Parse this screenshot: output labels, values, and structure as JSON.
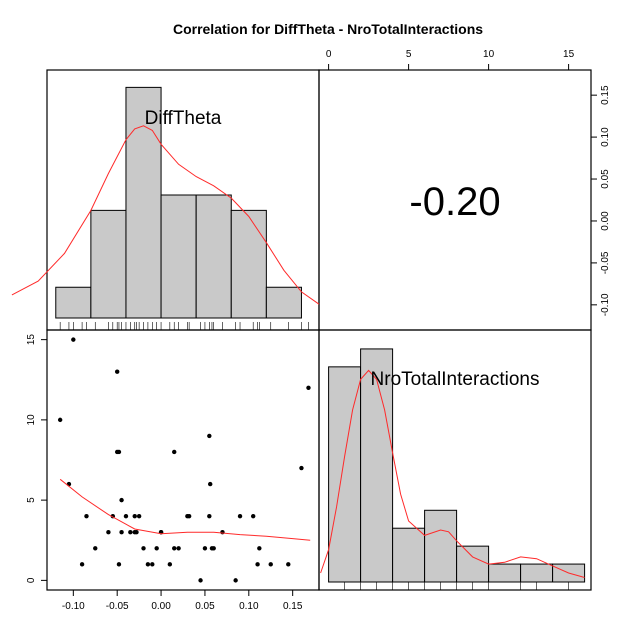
{
  "chart_data": {
    "type": "scatterplot-matrix",
    "title": "Correlation  for DiffTheta - NroTotalInteractions",
    "variables": [
      "DiffTheta",
      "NroTotalInteractions"
    ],
    "correlation": {
      "label": "-0.20",
      "value": -0.2
    },
    "top_axis": {
      "variable": "NroTotalInteractions",
      "range": [
        0,
        15
      ],
      "ticks": [
        0,
        5,
        10,
        15
      ],
      "labels": [
        "0",
        "5",
        "10",
        "15"
      ]
    },
    "right_axis": {
      "variable": "DiffTheta",
      "range": [
        -0.13,
        0.18
      ],
      "ticks": [
        -0.1,
        -0.05,
        0.0,
        0.05,
        0.1,
        0.15
      ],
      "labels": [
        "-0.10",
        "-0.05",
        "0.00",
        "0.05",
        "0.10",
        "0.15"
      ]
    },
    "bottom_axis": {
      "variable": "DiffTheta",
      "range": [
        -0.13,
        0.18
      ],
      "ticks": [
        -0.1,
        -0.05,
        0.0,
        0.05,
        0.1,
        0.15
      ],
      "labels": [
        "-0.10",
        "-0.05",
        "0.00",
        "0.05",
        "0.10",
        "0.15"
      ]
    },
    "left_axis": {
      "variable": "NroTotalInteractions",
      "range": [
        -0.6,
        15.6
      ],
      "ticks": [
        0,
        5,
        10,
        15
      ],
      "labels": [
        "0",
        "5",
        "10",
        "15"
      ]
    },
    "hist_difftheta": {
      "bins": [
        [
          -0.12,
          -0.08
        ],
        [
          -0.08,
          -0.04
        ],
        [
          -0.04,
          0.0
        ],
        [
          0.0,
          0.04
        ],
        [
          0.04,
          0.08
        ],
        [
          0.08,
          0.12
        ],
        [
          0.12,
          0.16
        ]
      ],
      "counts": [
        2,
        7,
        15,
        8,
        8,
        7,
        2
      ],
      "ymax": 16
    },
    "hist_nrototal": {
      "bins": [
        [
          0,
          2
        ],
        [
          2,
          4
        ],
        [
          4,
          6
        ],
        [
          6,
          8
        ],
        [
          8,
          10
        ],
        [
          10,
          12
        ],
        [
          12,
          14
        ],
        [
          14,
          16
        ]
      ],
      "counts": [
        12,
        13,
        3,
        4,
        2,
        1,
        1,
        1
      ],
      "ymax": 14
    },
    "density_difftheta": {
      "x": [
        -0.17,
        -0.14,
        -0.11,
        -0.08,
        -0.06,
        -0.04,
        -0.03,
        -0.02,
        -0.01,
        0.0,
        0.02,
        0.04,
        0.06,
        0.08,
        0.1,
        0.12,
        0.14,
        0.16,
        0.18
      ],
      "y": [
        1.5,
        2.4,
        4.2,
        7.0,
        9.4,
        11.6,
        12.3,
        12.5,
        12.2,
        11.3,
        10.0,
        9.2,
        8.6,
        7.8,
        6.6,
        4.9,
        3.1,
        1.7,
        0.9
      ]
    },
    "density_nrototal": {
      "x": [
        -0.5,
        0.0,
        0.5,
        1.0,
        1.5,
        2.0,
        2.5,
        3.0,
        3.5,
        4.0,
        4.5,
        5.0,
        6.0,
        7.0,
        7.5,
        8.0,
        9.0,
        10.0,
        11.0,
        12.0,
        13.0,
        14.0,
        15.0,
        16.0
      ],
      "y": [
        0.5,
        1.8,
        4.2,
        7.0,
        9.6,
        11.3,
        11.8,
        11.3,
        9.6,
        7.2,
        4.9,
        3.4,
        2.6,
        2.9,
        2.8,
        2.3,
        1.4,
        1.0,
        1.1,
        1.4,
        1.3,
        0.9,
        0.5,
        0.25
      ]
    },
    "rug_difftheta": [
      -0.115,
      -0.105,
      -0.1,
      -0.09,
      -0.085,
      -0.075,
      -0.06,
      -0.055,
      -0.05,
      -0.048,
      -0.045,
      -0.04,
      -0.035,
      -0.03,
      -0.028,
      -0.025,
      -0.02,
      -0.015,
      -0.01,
      -0.005,
      0.0,
      0.01,
      0.015,
      0.02,
      0.03,
      0.032,
      0.045,
      0.05,
      0.055,
      0.058,
      0.06,
      0.07,
      0.085,
      0.09,
      0.105,
      0.11,
      0.112,
      0.125,
      0.145,
      0.16,
      0.168
    ],
    "rug_nrototal": [
      1,
      2,
      3,
      4,
      5,
      6,
      7,
      8,
      9,
      10,
      12,
      13,
      15
    ],
    "scatter": {
      "x": [
        -0.115,
        -0.105,
        -0.1,
        -0.09,
        -0.085,
        -0.075,
        -0.06,
        -0.055,
        -0.05,
        -0.05,
        -0.048,
        -0.048,
        -0.045,
        -0.045,
        -0.04,
        -0.035,
        -0.03,
        -0.03,
        -0.028,
        -0.025,
        -0.02,
        -0.015,
        -0.01,
        -0.005,
        0.0,
        0.0,
        0.01,
        0.015,
        0.015,
        0.02,
        0.03,
        0.032,
        0.045,
        0.05,
        0.055,
        0.055,
        0.056,
        0.058,
        0.06,
        0.07,
        0.085,
        0.09,
        0.105,
        0.11,
        0.112,
        0.125,
        0.145,
        0.16,
        0.168
      ],
      "y": [
        10,
        6,
        15,
        1,
        4,
        2,
        3,
        4,
        13,
        8,
        8,
        1,
        5,
        3,
        4,
        3,
        4,
        3,
        3,
        4,
        2,
        1,
        1,
        2,
        3,
        3,
        1,
        8,
        2,
        2,
        4,
        4,
        0,
        2,
        9,
        4,
        6,
        2,
        2,
        3,
        0,
        4,
        4,
        1,
        2,
        1,
        1,
        7,
        12
      ]
    },
    "smooth": {
      "x": [
        -0.115,
        -0.09,
        -0.06,
        -0.03,
        0.0,
        0.03,
        0.06,
        0.09,
        0.12,
        0.15,
        0.17
      ],
      "y": [
        6.3,
        5.2,
        4.1,
        3.2,
        2.9,
        3.0,
        3.0,
        2.85,
        2.75,
        2.6,
        2.5
      ]
    },
    "colors": {
      "bar_fill": "#c9c9c9",
      "curve": "#ff2a2a",
      "points": "#000000",
      "frame": "#000000"
    }
  }
}
